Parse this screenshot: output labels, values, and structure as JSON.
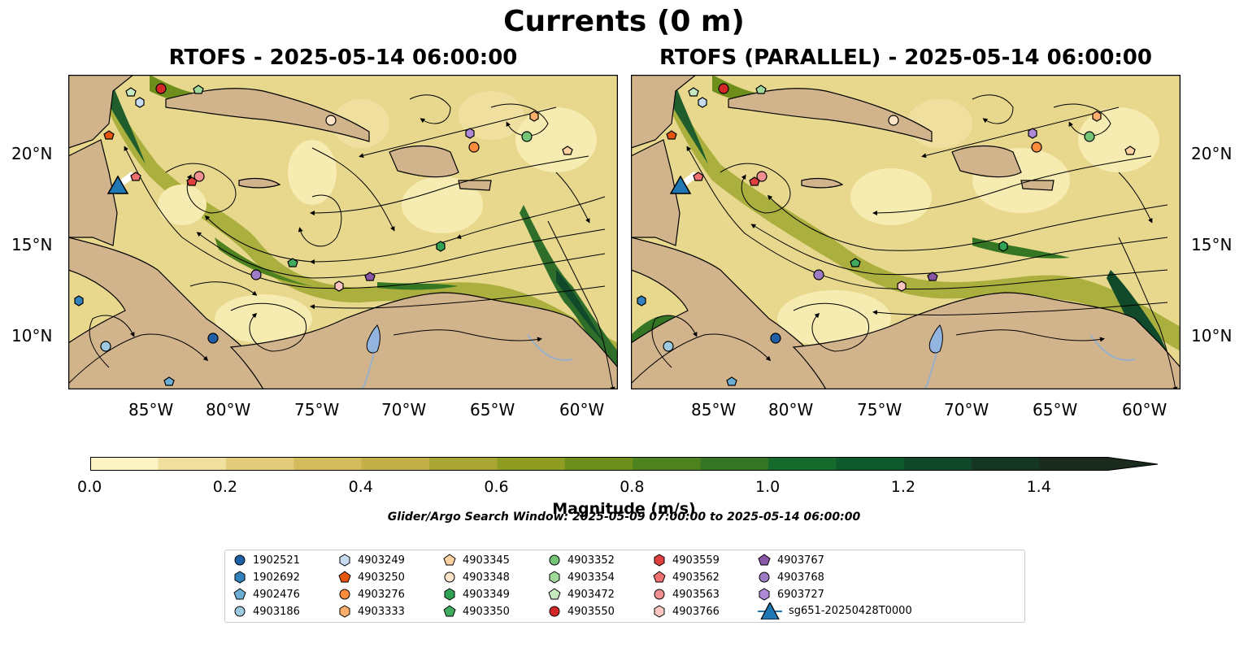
{
  "title": "Currents (0 m)",
  "panels": [
    {
      "title": "RTOFS - 2025-05-14 06:00:00"
    },
    {
      "title": "RTOFS (PARALLEL) - 2025-05-14 06:00:00"
    }
  ],
  "x_ticks": [
    "85°W",
    "80°W",
    "75°W",
    "70°W",
    "65°W",
    "60°W"
  ],
  "y_ticks": [
    "20°N",
    "15°N",
    "10°N"
  ],
  "colorbar": {
    "label": "Magnitude (m/s)",
    "ticks": [
      "0.0",
      "0.2",
      "0.4",
      "0.6",
      "0.8",
      "1.0",
      "1.2",
      "1.4"
    ],
    "range": [
      0,
      1.5
    ],
    "step": 0.1,
    "extend": "max",
    "colors": [
      "#fcf4c2",
      "#f0e0a0",
      "#e2cc7c",
      "#d4bc5c",
      "#c4b048",
      "#aaa634",
      "#8e9c22",
      "#6e8e1c",
      "#4e821e",
      "#347624",
      "#166a2c",
      "#0e5a2c",
      "#10462a",
      "#163624",
      "#1a2a1c"
    ]
  },
  "search_window": "Glider/Argo Search Window: 2025-05-09 07:00:00 to 2025-05-14 06:00:00",
  "map_colors": {
    "land": "#d2b48c",
    "water": "#e8d88e",
    "lake": "#92b4de",
    "river": "#9ab0c8"
  },
  "legend": [
    {
      "label": "1902521",
      "marker": "circle",
      "color": "#1f5fa6"
    },
    {
      "label": "1902692",
      "marker": "hexagon",
      "color": "#3182bd"
    },
    {
      "label": "4902476",
      "marker": "pentagon",
      "color": "#6aaed6"
    },
    {
      "label": "4903186",
      "marker": "circle",
      "color": "#9ecae1"
    },
    {
      "label": "4903249",
      "marker": "hexagon",
      "color": "#c6dbef"
    },
    {
      "label": "4903250",
      "marker": "pentagon",
      "color": "#e6550d"
    },
    {
      "label": "4903276",
      "marker": "circle",
      "color": "#fd8d3c"
    },
    {
      "label": "4903333",
      "marker": "hexagon",
      "color": "#fdae6b"
    },
    {
      "label": "4903345",
      "marker": "pentagon",
      "color": "#fdd0a2"
    },
    {
      "label": "4903348",
      "marker": "circle",
      "color": "#fde3c8"
    },
    {
      "label": "4903349",
      "marker": "hexagon",
      "color": "#31a354"
    },
    {
      "label": "4903350",
      "marker": "pentagon",
      "color": "#41ab5d"
    },
    {
      "label": "4903352",
      "marker": "circle",
      "color": "#74c476"
    },
    {
      "label": "4903354",
      "marker": "hexagon",
      "color": "#a1d99b"
    },
    {
      "label": "4903472",
      "marker": "pentagon",
      "color": "#c7e9c0"
    },
    {
      "label": "4903550",
      "marker": "circle",
      "color": "#d62728"
    },
    {
      "label": "4903559",
      "marker": "hexagon",
      "color": "#de4040"
    },
    {
      "label": "4903562",
      "marker": "pentagon",
      "color": "#f07070"
    },
    {
      "label": "4903563",
      "marker": "circle",
      "color": "#f09090"
    },
    {
      "label": "4903766",
      "marker": "hexagon",
      "color": "#fcc5c0"
    },
    {
      "label": "4903767",
      "marker": "pentagon",
      "color": "#8856a7"
    },
    {
      "label": "4903768",
      "marker": "circle",
      "color": "#9e7bc4"
    },
    {
      "label": "6903727",
      "marker": "hexagon",
      "color": "#b08ad8"
    },
    {
      "label": "sg651-20250428T0000",
      "marker": "triangle",
      "color": "#1f77b4"
    }
  ]
}
